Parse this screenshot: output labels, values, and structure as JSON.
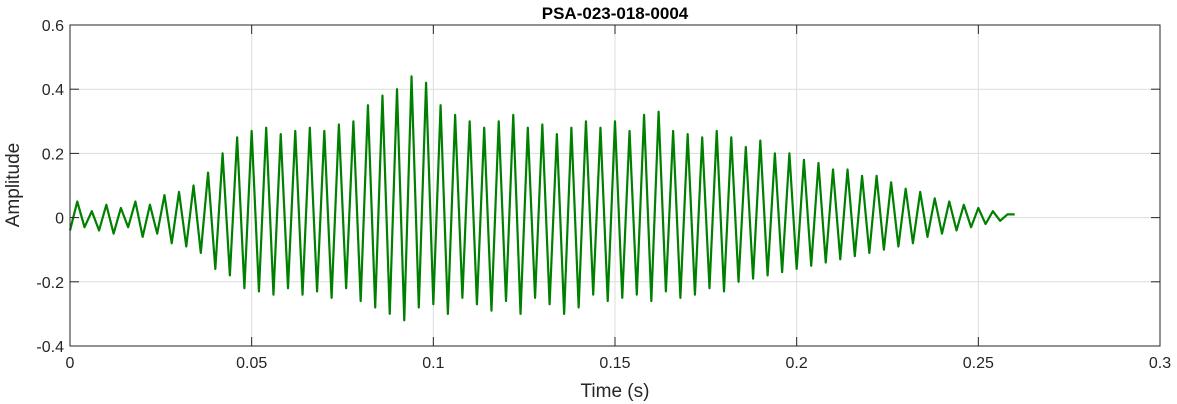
{
  "chart_data": {
    "type": "line",
    "title": "PSA-023-018-0004",
    "xlabel": "Time (s)",
    "ylabel": "Amplitude",
    "xlim": [
      0,
      0.3
    ],
    "ylim": [
      -0.4,
      0.6
    ],
    "xticks": [
      0,
      0.05,
      0.1,
      0.15,
      0.2,
      0.25,
      0.3
    ],
    "xtick_labels": [
      "0",
      "0.05",
      "0.1",
      "0.15",
      "0.2",
      "0.25",
      "0.3"
    ],
    "yticks": [
      -0.4,
      -0.2,
      0,
      0.2,
      0.4,
      0.6
    ],
    "ytick_labels": [
      "-0.4",
      "-0.2",
      "0",
      "0.2",
      "0.4",
      "0.6"
    ],
    "grid": true,
    "line_color": "#008000",
    "series": [
      {
        "x": [
          0,
          0.002,
          0.004,
          0.006,
          0.008,
          0.01,
          0.012,
          0.014,
          0.016,
          0.018,
          0.02,
          0.022,
          0.024,
          0.026,
          0.028,
          0.03,
          0.032,
          0.034,
          0.036,
          0.038,
          0.04,
          0.042,
          0.044,
          0.046,
          0.048,
          0.05,
          0.052,
          0.054,
          0.056,
          0.058,
          0.06,
          0.062,
          0.064,
          0.066,
          0.068,
          0.07,
          0.072,
          0.074,
          0.076,
          0.078,
          0.08,
          0.082,
          0.084,
          0.086,
          0.088,
          0.09,
          0.092,
          0.094,
          0.096,
          0.098,
          0.1,
          0.102,
          0.104,
          0.106,
          0.108,
          0.11,
          0.112,
          0.114,
          0.116,
          0.118,
          0.12,
          0.122,
          0.124,
          0.126,
          0.128,
          0.13,
          0.132,
          0.134,
          0.136,
          0.138,
          0.14,
          0.142,
          0.144,
          0.146,
          0.148,
          0.15,
          0.152,
          0.154,
          0.156,
          0.158,
          0.16,
          0.162,
          0.164,
          0.166,
          0.168,
          0.17,
          0.172,
          0.174,
          0.176,
          0.178,
          0.18,
          0.182,
          0.184,
          0.186,
          0.188,
          0.19,
          0.192,
          0.194,
          0.196,
          0.198,
          0.2,
          0.202,
          0.204,
          0.206,
          0.208,
          0.21,
          0.212,
          0.214,
          0.216,
          0.218,
          0.22,
          0.222,
          0.224,
          0.226,
          0.228,
          0.23,
          0.232,
          0.234,
          0.236,
          0.238,
          0.24,
          0.242,
          0.244,
          0.246,
          0.248,
          0.25,
          0.252,
          0.254,
          0.256,
          0.258,
          0.26
        ],
        "y": [
          -0.04,
          0.05,
          -0.03,
          0.02,
          -0.04,
          0.04,
          -0.05,
          0.03,
          -0.03,
          0.05,
          -0.06,
          0.04,
          -0.05,
          0.07,
          -0.08,
          0.08,
          -0.09,
          0.1,
          -0.11,
          0.14,
          -0.16,
          0.2,
          -0.18,
          0.25,
          -0.22,
          0.27,
          -0.23,
          0.28,
          -0.24,
          0.26,
          -0.22,
          0.27,
          -0.24,
          0.28,
          -0.23,
          0.27,
          -0.25,
          0.29,
          -0.22,
          0.3,
          -0.26,
          0.35,
          -0.28,
          0.38,
          -0.3,
          0.4,
          -0.32,
          0.44,
          -0.28,
          0.42,
          -0.27,
          0.35,
          -0.3,
          0.32,
          -0.25,
          0.3,
          -0.27,
          0.28,
          -0.29,
          0.3,
          -0.26,
          0.32,
          -0.3,
          0.28,
          -0.25,
          0.29,
          -0.27,
          0.26,
          -0.3,
          0.28,
          -0.28,
          0.3,
          -0.24,
          0.28,
          -0.26,
          0.3,
          -0.25,
          0.27,
          -0.24,
          0.32,
          -0.26,
          0.33,
          -0.23,
          0.27,
          -0.25,
          0.26,
          -0.24,
          0.25,
          -0.22,
          0.27,
          -0.23,
          0.25,
          -0.2,
          0.22,
          -0.19,
          0.24,
          -0.18,
          0.2,
          -0.17,
          0.2,
          -0.16,
          0.18,
          -0.15,
          0.17,
          -0.14,
          0.15,
          -0.13,
          0.15,
          -0.12,
          0.13,
          -0.11,
          0.13,
          -0.1,
          0.11,
          -0.09,
          0.09,
          -0.08,
          0.08,
          -0.06,
          0.06,
          -0.05,
          0.05,
          -0.04,
          0.04,
          -0.03,
          0.03,
          -0.02,
          0.02,
          -0.01,
          0.01,
          0.01
        ]
      }
    ]
  }
}
